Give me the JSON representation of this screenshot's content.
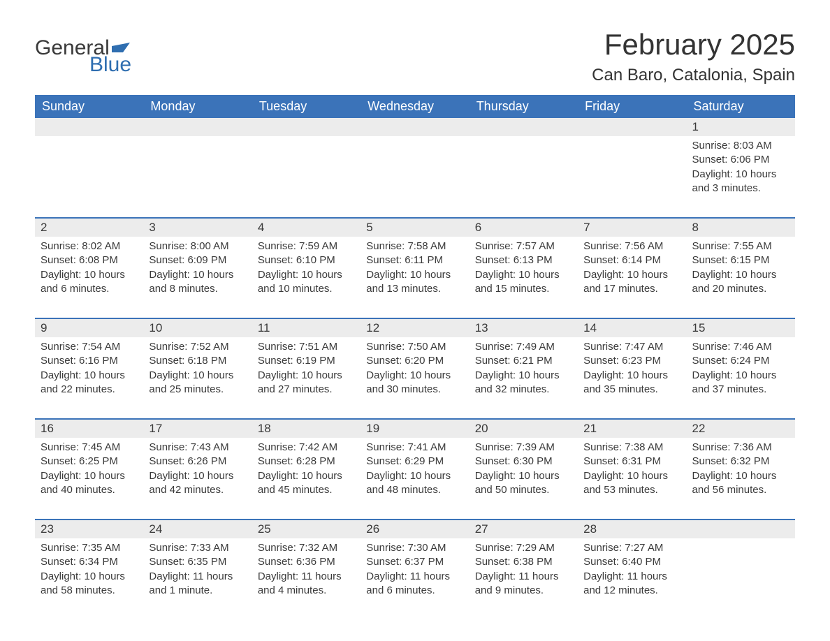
{
  "logo": {
    "text_general": "General",
    "text_blue": "Blue",
    "flag_color": "#2f6eb0"
  },
  "title": "February 2025",
  "location": "Can Baro, Catalonia, Spain",
  "colors": {
    "header_bg": "#3b73b9",
    "header_text": "#ffffff",
    "daynum_bg": "#ececec",
    "border": "#3b73b9",
    "text": "#3a3a3a",
    "background": "#ffffff"
  },
  "columns": [
    "Sunday",
    "Monday",
    "Tuesday",
    "Wednesday",
    "Thursday",
    "Friday",
    "Saturday"
  ],
  "weeks": [
    [
      {
        "n": "",
        "sr": "",
        "ss": "",
        "dl": ""
      },
      {
        "n": "",
        "sr": "",
        "ss": "",
        "dl": ""
      },
      {
        "n": "",
        "sr": "",
        "ss": "",
        "dl": ""
      },
      {
        "n": "",
        "sr": "",
        "ss": "",
        "dl": ""
      },
      {
        "n": "",
        "sr": "",
        "ss": "",
        "dl": ""
      },
      {
        "n": "",
        "sr": "",
        "ss": "",
        "dl": ""
      },
      {
        "n": "1",
        "sr": "Sunrise: 8:03 AM",
        "ss": "Sunset: 6:06 PM",
        "dl": "Daylight: 10 hours and 3 minutes."
      }
    ],
    [
      {
        "n": "2",
        "sr": "Sunrise: 8:02 AM",
        "ss": "Sunset: 6:08 PM",
        "dl": "Daylight: 10 hours and 6 minutes."
      },
      {
        "n": "3",
        "sr": "Sunrise: 8:00 AM",
        "ss": "Sunset: 6:09 PM",
        "dl": "Daylight: 10 hours and 8 minutes."
      },
      {
        "n": "4",
        "sr": "Sunrise: 7:59 AM",
        "ss": "Sunset: 6:10 PM",
        "dl": "Daylight: 10 hours and 10 minutes."
      },
      {
        "n": "5",
        "sr": "Sunrise: 7:58 AM",
        "ss": "Sunset: 6:11 PM",
        "dl": "Daylight: 10 hours and 13 minutes."
      },
      {
        "n": "6",
        "sr": "Sunrise: 7:57 AM",
        "ss": "Sunset: 6:13 PM",
        "dl": "Daylight: 10 hours and 15 minutes."
      },
      {
        "n": "7",
        "sr": "Sunrise: 7:56 AM",
        "ss": "Sunset: 6:14 PM",
        "dl": "Daylight: 10 hours and 17 minutes."
      },
      {
        "n": "8",
        "sr": "Sunrise: 7:55 AM",
        "ss": "Sunset: 6:15 PM",
        "dl": "Daylight: 10 hours and 20 minutes."
      }
    ],
    [
      {
        "n": "9",
        "sr": "Sunrise: 7:54 AM",
        "ss": "Sunset: 6:16 PM",
        "dl": "Daylight: 10 hours and 22 minutes."
      },
      {
        "n": "10",
        "sr": "Sunrise: 7:52 AM",
        "ss": "Sunset: 6:18 PM",
        "dl": "Daylight: 10 hours and 25 minutes."
      },
      {
        "n": "11",
        "sr": "Sunrise: 7:51 AM",
        "ss": "Sunset: 6:19 PM",
        "dl": "Daylight: 10 hours and 27 minutes."
      },
      {
        "n": "12",
        "sr": "Sunrise: 7:50 AM",
        "ss": "Sunset: 6:20 PM",
        "dl": "Daylight: 10 hours and 30 minutes."
      },
      {
        "n": "13",
        "sr": "Sunrise: 7:49 AM",
        "ss": "Sunset: 6:21 PM",
        "dl": "Daylight: 10 hours and 32 minutes."
      },
      {
        "n": "14",
        "sr": "Sunrise: 7:47 AM",
        "ss": "Sunset: 6:23 PM",
        "dl": "Daylight: 10 hours and 35 minutes."
      },
      {
        "n": "15",
        "sr": "Sunrise: 7:46 AM",
        "ss": "Sunset: 6:24 PM",
        "dl": "Daylight: 10 hours and 37 minutes."
      }
    ],
    [
      {
        "n": "16",
        "sr": "Sunrise: 7:45 AM",
        "ss": "Sunset: 6:25 PM",
        "dl": "Daylight: 10 hours and 40 minutes."
      },
      {
        "n": "17",
        "sr": "Sunrise: 7:43 AM",
        "ss": "Sunset: 6:26 PM",
        "dl": "Daylight: 10 hours and 42 minutes."
      },
      {
        "n": "18",
        "sr": "Sunrise: 7:42 AM",
        "ss": "Sunset: 6:28 PM",
        "dl": "Daylight: 10 hours and 45 minutes."
      },
      {
        "n": "19",
        "sr": "Sunrise: 7:41 AM",
        "ss": "Sunset: 6:29 PM",
        "dl": "Daylight: 10 hours and 48 minutes."
      },
      {
        "n": "20",
        "sr": "Sunrise: 7:39 AM",
        "ss": "Sunset: 6:30 PM",
        "dl": "Daylight: 10 hours and 50 minutes."
      },
      {
        "n": "21",
        "sr": "Sunrise: 7:38 AM",
        "ss": "Sunset: 6:31 PM",
        "dl": "Daylight: 10 hours and 53 minutes."
      },
      {
        "n": "22",
        "sr": "Sunrise: 7:36 AM",
        "ss": "Sunset: 6:32 PM",
        "dl": "Daylight: 10 hours and 56 minutes."
      }
    ],
    [
      {
        "n": "23",
        "sr": "Sunrise: 7:35 AM",
        "ss": "Sunset: 6:34 PM",
        "dl": "Daylight: 10 hours and 58 minutes."
      },
      {
        "n": "24",
        "sr": "Sunrise: 7:33 AM",
        "ss": "Sunset: 6:35 PM",
        "dl": "Daylight: 11 hours and 1 minute."
      },
      {
        "n": "25",
        "sr": "Sunrise: 7:32 AM",
        "ss": "Sunset: 6:36 PM",
        "dl": "Daylight: 11 hours and 4 minutes."
      },
      {
        "n": "26",
        "sr": "Sunrise: 7:30 AM",
        "ss": "Sunset: 6:37 PM",
        "dl": "Daylight: 11 hours and 6 minutes."
      },
      {
        "n": "27",
        "sr": "Sunrise: 7:29 AM",
        "ss": "Sunset: 6:38 PM",
        "dl": "Daylight: 11 hours and 9 minutes."
      },
      {
        "n": "28",
        "sr": "Sunrise: 7:27 AM",
        "ss": "Sunset: 6:40 PM",
        "dl": "Daylight: 11 hours and 12 minutes."
      },
      {
        "n": "",
        "sr": "",
        "ss": "",
        "dl": ""
      }
    ]
  ]
}
